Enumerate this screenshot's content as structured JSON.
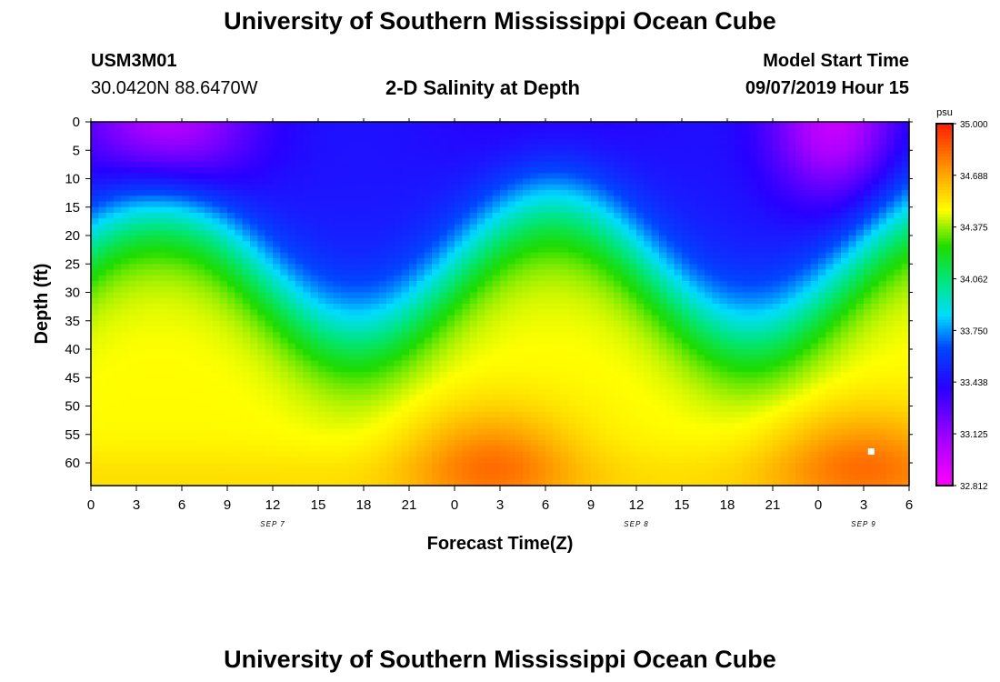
{
  "page": {
    "title": "University of Southern Mississippi Ocean Cube",
    "footer_title": "University of Southern Mississippi Ocean Cube",
    "station_id": "USM3M01",
    "coords": "30.0420N 88.6470W",
    "chart_title": "2-D Salinity at Depth",
    "start_label": "Model Start Time",
    "start_value": "09/07/2019 Hour 15"
  },
  "chart_data": {
    "type": "heatmap",
    "title": "2-D Salinity at Depth",
    "xlabel": "Forecast Time(Z)",
    "ylabel": "Depth (ft)",
    "x_ticks": [
      "0",
      "3",
      "6",
      "9",
      "12",
      "15",
      "18",
      "21",
      "0",
      "3",
      "6",
      "9",
      "12",
      "15",
      "18",
      "21",
      "0",
      "3",
      "6"
    ],
    "date_labels": [
      {
        "label": "SEP 7",
        "hour": 12
      },
      {
        "label": "SEP 8",
        "hour": 36
      },
      {
        "label": "SEP 9",
        "hour": 51
      }
    ],
    "x_range_hours": [
      0,
      54
    ],
    "y_ticks": [
      "0",
      "5",
      "10",
      "15",
      "20",
      "25",
      "30",
      "35",
      "40",
      "45",
      "50",
      "55",
      "60"
    ],
    "y_range_ft": [
      0,
      64
    ],
    "colorbar": {
      "unit": "psu",
      "min": 32.812,
      "max": 35.0,
      "ticks": [
        "35.000",
        "34.688",
        "34.375",
        "34.062",
        "33.750",
        "33.438",
        "33.125",
        "32.812"
      ]
    },
    "marker": {
      "hour": 51.5,
      "depth_ft": 58
    }
  }
}
